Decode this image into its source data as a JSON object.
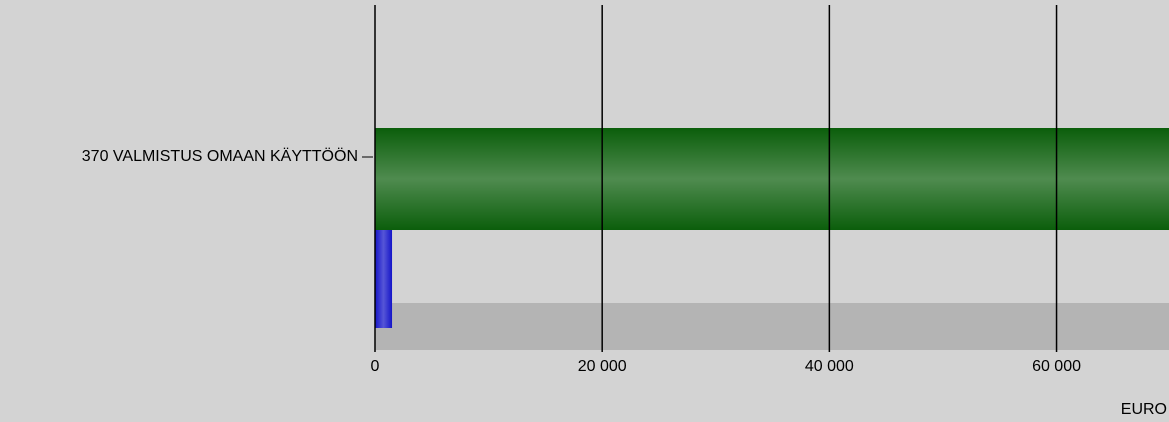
{
  "chart_data": {
    "type": "barh",
    "categories": [
      "370 VALMISTUS OMAAN KÄYTTÖÖN"
    ],
    "series": [
      {
        "color": "#b4b4b4",
        "values": [
          72000
        ],
        "fill": "flat"
      },
      {
        "color": "#0b5e0b",
        "values": [
          72000
        ],
        "fill": "gradient"
      },
      {
        "color": "#1414c8",
        "values": [
          1500
        ],
        "fill": "gradient"
      }
    ],
    "xlabel": "EURO",
    "xlim": [
      0,
      69900
    ],
    "xticks": [
      0,
      {
        "value": 20000,
        "label": "20 000"
      },
      {
        "value": 40000,
        "label": "40 000"
      },
      {
        "value": 60000,
        "label": "60 000"
      }
    ],
    "grid": true
  }
}
